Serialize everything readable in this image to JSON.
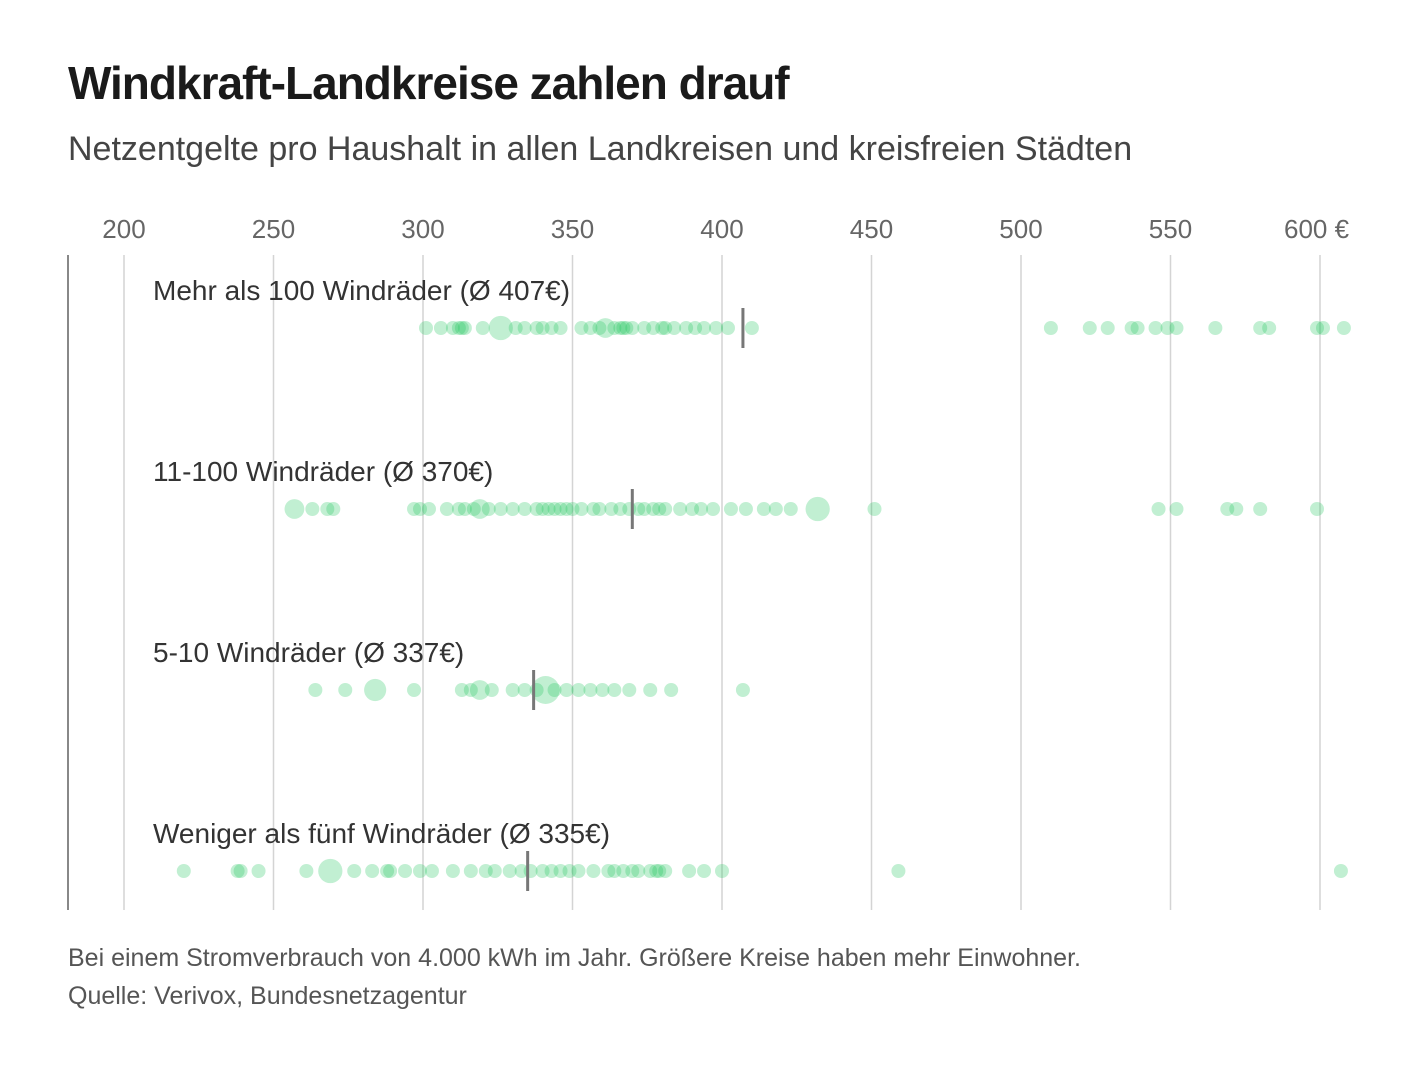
{
  "header": {
    "title": "Windkraft-Landkreise zahlen drauf",
    "subtitle": "Netzentgelte pro Haushalt in allen Landkreisen und kreisfreien Städten"
  },
  "footer": {
    "note": "Bei einem Stromverbrauch von 4.000 kWh im Jahr. Größere Kreise haben mehr Einwohner.",
    "source": "Quelle: Verivox, Bundesnetzagentur"
  },
  "colors": {
    "dot": "#22c55e",
    "mean": "#777777",
    "grid": "#d4d4d4",
    "axis": "#888888",
    "tick": "#666666",
    "label": "#333333"
  },
  "chart_data": {
    "type": "scatter",
    "xlim": [
      182,
      612
    ],
    "x_ticks": [
      200,
      250,
      300,
      350,
      400,
      450,
      500,
      550,
      600
    ],
    "x_tick_labels": [
      "200",
      "250",
      "300",
      "350",
      "400",
      "450",
      "500",
      "550",
      "600 €"
    ],
    "grid": true,
    "series": [
      {
        "name": "Mehr als 100 Windräder (Ø 407€)",
        "mean": 407,
        "points": [
          {
            "x": 301
          },
          {
            "x": 306
          },
          {
            "x": 310
          },
          {
            "x": 312
          },
          {
            "x": 313
          },
          {
            "x": 314
          },
          {
            "x": 320
          },
          {
            "x": 326,
            "size": 3
          },
          {
            "x": 331
          },
          {
            "x": 334
          },
          {
            "x": 338
          },
          {
            "x": 340
          },
          {
            "x": 343
          },
          {
            "x": 346
          },
          {
            "x": 353
          },
          {
            "x": 356
          },
          {
            "x": 359
          },
          {
            "x": 361,
            "size": 2
          },
          {
            "x": 364
          },
          {
            "x": 366
          },
          {
            "x": 367
          },
          {
            "x": 368
          },
          {
            "x": 370
          },
          {
            "x": 374
          },
          {
            "x": 377
          },
          {
            "x": 380
          },
          {
            "x": 381
          },
          {
            "x": 384
          },
          {
            "x": 388
          },
          {
            "x": 391
          },
          {
            "x": 394
          },
          {
            "x": 398
          },
          {
            "x": 402
          },
          {
            "x": 410
          },
          {
            "x": 510
          },
          {
            "x": 523
          },
          {
            "x": 529
          },
          {
            "x": 537
          },
          {
            "x": 539
          },
          {
            "x": 545
          },
          {
            "x": 549
          },
          {
            "x": 552
          },
          {
            "x": 565
          },
          {
            "x": 580
          },
          {
            "x": 583
          },
          {
            "x": 599
          },
          {
            "x": 601
          },
          {
            "x": 608
          }
        ]
      },
      {
        "name": "11-100 Windräder (Ø 370€)",
        "mean": 370,
        "points": [
          {
            "x": 257,
            "size": 2
          },
          {
            "x": 263
          },
          {
            "x": 268
          },
          {
            "x": 270
          },
          {
            "x": 297
          },
          {
            "x": 299
          },
          {
            "x": 302
          },
          {
            "x": 308
          },
          {
            "x": 312
          },
          {
            "x": 314
          },
          {
            "x": 317
          },
          {
            "x": 319,
            "size": 2
          },
          {
            "x": 322
          },
          {
            "x": 326
          },
          {
            "x": 330
          },
          {
            "x": 334
          },
          {
            "x": 338
          },
          {
            "x": 340
          },
          {
            "x": 342
          },
          {
            "x": 344
          },
          {
            "x": 346
          },
          {
            "x": 348
          },
          {
            "x": 350
          },
          {
            "x": 353
          },
          {
            "x": 357
          },
          {
            "x": 359
          },
          {
            "x": 363
          },
          {
            "x": 366
          },
          {
            "x": 369
          },
          {
            "x": 372
          },
          {
            "x": 374
          },
          {
            "x": 377
          },
          {
            "x": 379
          },
          {
            "x": 381
          },
          {
            "x": 386
          },
          {
            "x": 390
          },
          {
            "x": 393
          },
          {
            "x": 397
          },
          {
            "x": 403
          },
          {
            "x": 408
          },
          {
            "x": 414
          },
          {
            "x": 418
          },
          {
            "x": 423
          },
          {
            "x": 432,
            "size": 3
          },
          {
            "x": 451
          },
          {
            "x": 546
          },
          {
            "x": 552
          },
          {
            "x": 569
          },
          {
            "x": 572
          },
          {
            "x": 580
          },
          {
            "x": 599
          }
        ]
      },
      {
        "name": "5-10 Windräder (Ø 337€)",
        "mean": 337,
        "points": [
          {
            "x": 264
          },
          {
            "x": 274
          },
          {
            "x": 284,
            "size": 2.5
          },
          {
            "x": 297
          },
          {
            "x": 313
          },
          {
            "x": 316
          },
          {
            "x": 319,
            "size": 2
          },
          {
            "x": 323
          },
          {
            "x": 330
          },
          {
            "x": 334
          },
          {
            "x": 338
          },
          {
            "x": 341,
            "size": 4
          },
          {
            "x": 344
          },
          {
            "x": 348
          },
          {
            "x": 352
          },
          {
            "x": 356
          },
          {
            "x": 360
          },
          {
            "x": 364
          },
          {
            "x": 369
          },
          {
            "x": 376
          },
          {
            "x": 383
          },
          {
            "x": 407
          }
        ]
      },
      {
        "name": "Weniger als fünf Windräder (Ø 335€)",
        "mean": 335,
        "points": [
          {
            "x": 220
          },
          {
            "x": 238
          },
          {
            "x": 239
          },
          {
            "x": 245
          },
          {
            "x": 261
          },
          {
            "x": 269,
            "size": 3
          },
          {
            "x": 277
          },
          {
            "x": 283
          },
          {
            "x": 288
          },
          {
            "x": 289
          },
          {
            "x": 294
          },
          {
            "x": 299
          },
          {
            "x": 303
          },
          {
            "x": 310
          },
          {
            "x": 316
          },
          {
            "x": 321
          },
          {
            "x": 324
          },
          {
            "x": 329
          },
          {
            "x": 333
          },
          {
            "x": 336
          },
          {
            "x": 340
          },
          {
            "x": 343
          },
          {
            "x": 346
          },
          {
            "x": 349
          },
          {
            "x": 352
          },
          {
            "x": 357
          },
          {
            "x": 362
          },
          {
            "x": 364
          },
          {
            "x": 367
          },
          {
            "x": 370
          },
          {
            "x": 372
          },
          {
            "x": 376
          },
          {
            "x": 378
          },
          {
            "x": 379
          },
          {
            "x": 381
          },
          {
            "x": 389
          },
          {
            "x": 394
          },
          {
            "x": 400
          },
          {
            "x": 459
          },
          {
            "x": 607
          }
        ]
      }
    ]
  }
}
